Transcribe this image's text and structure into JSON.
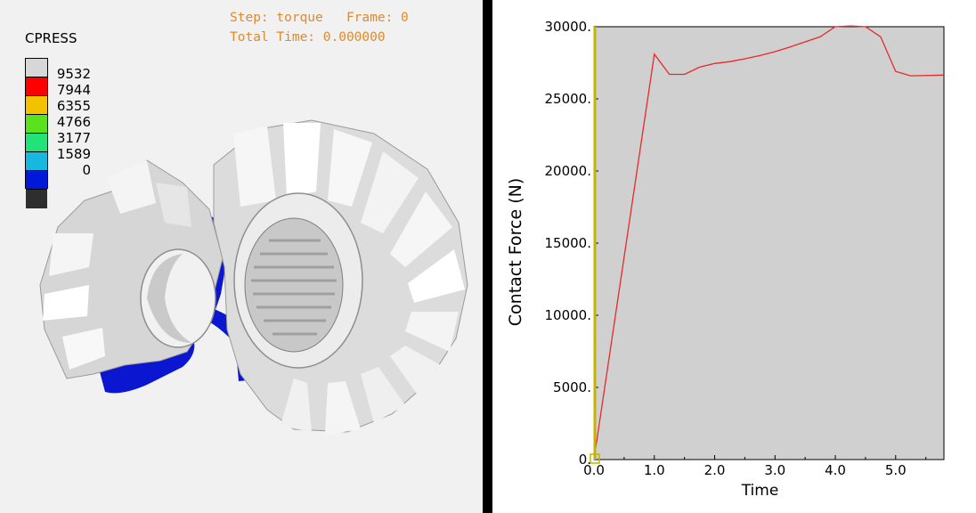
{
  "viewer": {
    "step_line": "Step: torque   Frame: 0",
    "time_line": "Total Time: 0.000000"
  },
  "legend": {
    "title": "CPRESS",
    "labels": [
      "9532",
      "7944",
      "6355",
      "4766",
      "3177",
      "1589",
      "0"
    ],
    "colors": [
      "#d7d7d7",
      "#ff0000",
      "#f2c100",
      "#5ae21c",
      "#22e27a",
      "#16b8e0",
      "#0018d8",
      "#2e2e2e"
    ]
  },
  "colors": {
    "gear": "#ececec",
    "gear_shade": "#b9b9b9",
    "contact_blue": "#0a16d0",
    "plot_bg": "#d0d0d0",
    "curve": "#e8292b",
    "cursor": "#c2b300"
  },
  "chart_data": {
    "type": "line",
    "xlabel": "Time",
    "ylabel": "Contact Force (N)",
    "xlim": [
      0,
      5.8
    ],
    "ylim": [
      0,
      30000
    ],
    "xticks": [
      "0.0",
      "1.0",
      "2.0",
      "3.0",
      "4.0",
      "5.0"
    ],
    "yticks": [
      "0.",
      "5000.",
      "10000.",
      "15000.",
      "20000.",
      "25000.",
      "30000."
    ],
    "grid": false,
    "series": [
      {
        "x": [
          0.0,
          1.0,
          1.25,
          1.5,
          1.75,
          2.0,
          2.25,
          2.5,
          2.75,
          3.0,
          3.25,
          3.5,
          3.75,
          4.0,
          4.25,
          4.5,
          4.75,
          5.0,
          5.25,
          5.8
        ],
        "y": [
          0,
          28100,
          26700,
          26700,
          27200,
          27450,
          27580,
          27780,
          28000,
          28270,
          28600,
          28950,
          29300,
          30000,
          30050,
          30000,
          29300,
          26900,
          26600,
          26650
        ]
      }
    ],
    "cursor_x": 0.0
  }
}
